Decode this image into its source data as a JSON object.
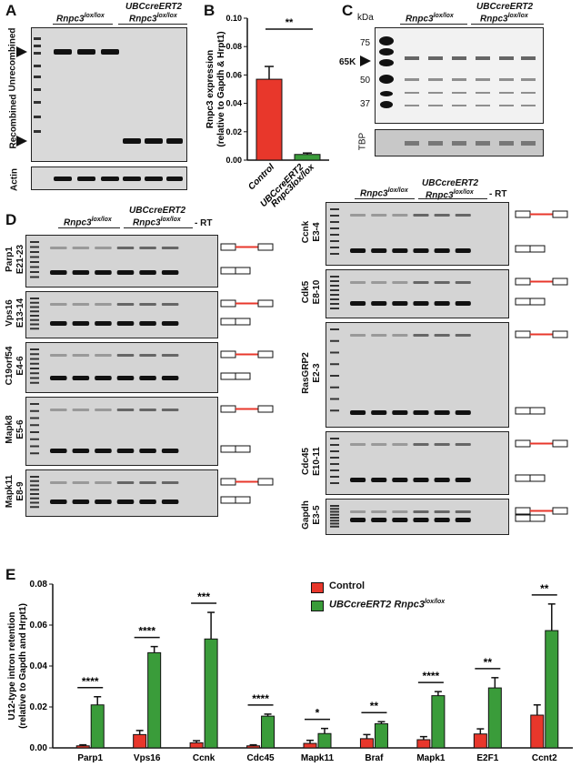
{
  "panels": {
    "A": "A",
    "B": "B",
    "C": "C",
    "D": "D",
    "E": "E"
  },
  "panelA": {
    "group1": "Rnpc3",
    "group1_sup": "lox/lox",
    "group2_line1": "UBCcreERT2",
    "group2_line2": "Rnpc3",
    "group2_sup": "lox/lox",
    "label_unrecombined": "Unrecombined",
    "label_recombined": "Recombined",
    "label_actin": "Actin"
  },
  "panelB": {
    "chart_data": {
      "type": "bar",
      "categories": [
        "Control",
        "UBCcreERT2 Rnpc3lox/lox"
      ],
      "values": [
        0.057,
        0.004
      ],
      "errors": [
        0.009,
        0.001
      ],
      "colors": [
        "#e8372b",
        "#3a9c3a"
      ],
      "ylim": [
        0,
        0.1
      ],
      "yticks": [
        "0.00",
        "0.02",
        "0.04",
        "0.06",
        "0.08",
        "0.10"
      ],
      "ylabel_line1": "Rnpc3 expression",
      "ylabel_line2": "(relative to Gapdh & Hrpt1)",
      "significance": "**"
    },
    "xlabel1": "Control",
    "xlabel2_line1": "UBCcreERT2",
    "xlabel2_line2": "Rnpc3lox/lox"
  },
  "panelC": {
    "kda": "kDa",
    "markers": [
      "75",
      "50",
      "37"
    ],
    "band_label": "65K",
    "group1": "Rnpc3",
    "group1_sup": "lox/lox",
    "group2_line1": "UBCcreERT2",
    "group2_line2": "Rnpc3",
    "group2_sup": "lox/lox",
    "loading": "TBP"
  },
  "panelD": {
    "group1": "Rnpc3",
    "group1_sup": "lox/lox",
    "group2_line1": "UBCcreERT2",
    "group2_line2": "Rnpc3",
    "group2_sup": "lox/lox",
    "rt": "- RT",
    "left_gels": [
      {
        "gene": "Parp1",
        "exons": "E21-23"
      },
      {
        "gene": "Vps16",
        "exons": "E13-14"
      },
      {
        "gene": "C19orf54",
        "exons": "E4-6"
      },
      {
        "gene": "Mapk8",
        "exons": "E5-6"
      },
      {
        "gene": "Mapk11",
        "exons": "E8-9"
      }
    ],
    "right_gels": [
      {
        "gene": "Ccnk",
        "exons": "E3-4"
      },
      {
        "gene": "Cdk5",
        "exons": "E8-10"
      },
      {
        "gene": "RasGRP2",
        "exons": "E2-3"
      },
      {
        "gene": "Cdc45",
        "exons": "E10-11"
      },
      {
        "gene": "Gapdh",
        "exons": "E3-5"
      }
    ]
  },
  "panelE": {
    "chart_data": {
      "type": "bar",
      "categories": [
        "Parp1",
        "Vps16",
        "Ccnk",
        "Cdc45",
        "Mapk11",
        "Braf",
        "Mapk1",
        "E2F1",
        "Ccnt2"
      ],
      "series": [
        {
          "name": "Control",
          "color": "#e8372b",
          "values": [
            0.001,
            0.0065,
            0.0025,
            0.001,
            0.0022,
            0.0045,
            0.004,
            0.0068,
            0.016
          ],
          "errors": [
            0.0005,
            0.002,
            0.001,
            0.0005,
            0.0015,
            0.002,
            0.0015,
            0.0025,
            0.005
          ]
        },
        {
          "name": "UBCcreERT2 Rnpc3lox/lox",
          "color": "#3a9c3a",
          "values": [
            0.021,
            0.0465,
            0.0532,
            0.0155,
            0.007,
            0.0118,
            0.0255,
            0.0293,
            0.0573
          ],
          "errors": [
            0.004,
            0.003,
            0.013,
            0.001,
            0.0025,
            0.001,
            0.002,
            0.005,
            0.013
          ]
        }
      ],
      "significance": [
        "****",
        "****",
        "***",
        "****",
        "*",
        "**",
        "****",
        "**",
        "**"
      ],
      "ylim": [
        0,
        0.08
      ],
      "yticks": [
        "0.00",
        "0.02",
        "0.04",
        "0.06",
        "0.08"
      ],
      "ylabel_line1": "U12-type intron retention",
      "ylabel_line2": "(relative to Gapdh and Hrpt1)"
    },
    "legend_control": "Control",
    "legend_cre": "UBCcreERT2 Rnpc3",
    "legend_cre_sup": "lox/lox"
  }
}
